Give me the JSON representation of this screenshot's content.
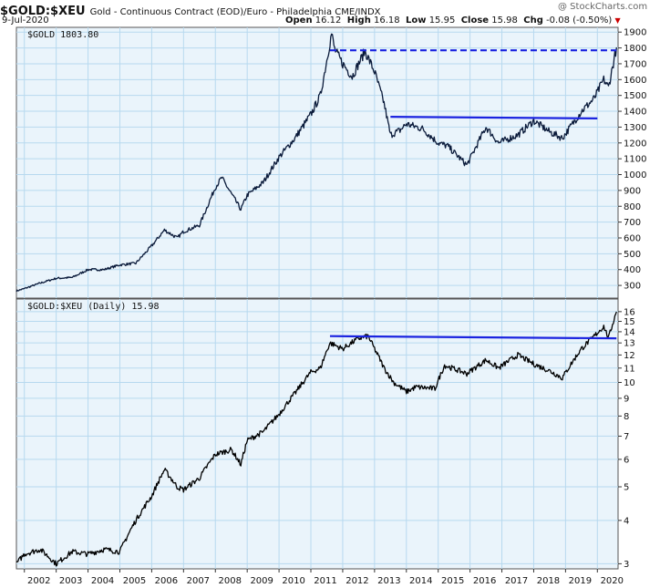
{
  "header": {
    "symbol": "$GOLD:$XEU",
    "description": "Gold - Continuous Contract (EOD)/Euro - Philadelphia CME/INDX",
    "date": "9-Jul-2020",
    "watermark": "@ StockCharts.com",
    "open_label": "Open",
    "open_value": "16.12",
    "high_label": "High",
    "high_value": "16.18",
    "low_label": "Low",
    "low_value": "15.95",
    "close_label": "Close",
    "close_value": "15.98",
    "chg_label": "Chg",
    "chg_value": "-0.08 (-0.50%)"
  },
  "colors": {
    "panel_bg": "#eaf4fb",
    "grid": "#b7d9ef",
    "line": "#0a1a3a",
    "lower_line": "#000000",
    "trendline": "#1a23e0",
    "down_arrow": "#cc0000"
  },
  "chart_data": [
    {
      "type": "line",
      "legend": "$GOLD 1803.80",
      "scale": "linear",
      "ylim": [
        220,
        1930
      ],
      "yticks": [
        300,
        400,
        500,
        600,
        700,
        800,
        900,
        1000,
        1100,
        1200,
        1300,
        1400,
        1500,
        1600,
        1700,
        1800,
        1900
      ],
      "x_ticks": [
        "2002",
        "2003",
        "2004",
        "2005",
        "2006",
        "2007",
        "2008",
        "2009",
        "2010",
        "2011",
        "2012",
        "2013",
        "2014",
        "2015",
        "2016",
        "2017",
        "2018",
        "2019",
        "2020"
      ],
      "series": [
        {
          "x": [
            2001.75,
            2002.0,
            2002.5,
            2003.0,
            2003.5,
            2004.0,
            2004.5,
            2005.0,
            2005.5,
            2006.0,
            2006.4,
            2006.8,
            2007.0,
            2007.5,
            2008.0,
            2008.2,
            2008.8,
            2009.0,
            2009.5,
            2010.0,
            2010.5,
            2011.0,
            2011.3,
            2011.65,
            2011.75,
            2012.0,
            2012.3,
            2012.7,
            2013.0,
            2013.3,
            2013.5,
            2013.8,
            2014.0,
            2014.5,
            2015.0,
            2015.3,
            2015.9,
            2016.5,
            2016.9,
            2017.5,
            2018.0,
            2018.5,
            2018.9,
            2019.5,
            2019.9,
            2020.2,
            2020.35,
            2020.6
          ],
          "y": [
            265,
            280,
            315,
            345,
            350,
            400,
            400,
            430,
            440,
            550,
            650,
            600,
            640,
            680,
            920,
            980,
            780,
            870,
            950,
            1110,
            1230,
            1380,
            1500,
            1890,
            1790,
            1700,
            1620,
            1780,
            1650,
            1450,
            1250,
            1280,
            1320,
            1290,
            1200,
            1180,
            1060,
            1300,
            1200,
            1250,
            1340,
            1270,
            1230,
            1400,
            1480,
            1600,
            1550,
            1804
          ]
        },
        {
          "name": "resistance",
          "style": "dashed",
          "x": [
            2011.6,
            2020.6
          ],
          "y": [
            1785,
            1785
          ]
        },
        {
          "name": "support",
          "style": "solid",
          "x": [
            2013.5,
            2020.0
          ],
          "y": [
            1365,
            1355
          ]
        }
      ]
    },
    {
      "type": "line",
      "legend": "$GOLD:$XEU (Daily) 15.98",
      "scale": "log",
      "ylim": [
        2.9,
        17.4
      ],
      "yticks": [
        3,
        4,
        5,
        6,
        7,
        8,
        9,
        10,
        11,
        12,
        13,
        14,
        15,
        16
      ],
      "x_ticks": [
        "2002",
        "2003",
        "2004",
        "2005",
        "2006",
        "2007",
        "2008",
        "2009",
        "2010",
        "2011",
        "2012",
        "2013",
        "2014",
        "2015",
        "2016",
        "2017",
        "2018",
        "2019",
        "2020"
      ],
      "series": [
        {
          "x": [
            2001.75,
            2002.0,
            2002.5,
            2003.0,
            2003.5,
            2004.0,
            2004.5,
            2005.0,
            2005.5,
            2006.0,
            2006.4,
            2006.8,
            2007.0,
            2007.5,
            2008.0,
            2008.5,
            2008.8,
            2009.0,
            2009.5,
            2010.0,
            2010.5,
            2011.0,
            2011.3,
            2011.6,
            2012.0,
            2012.5,
            2012.8,
            2013.0,
            2013.3,
            2013.6,
            2014.0,
            2014.3,
            2014.9,
            2015.2,
            2015.9,
            2016.5,
            2016.9,
            2017.5,
            2018.0,
            2018.5,
            2018.9,
            2019.5,
            2019.9,
            2020.2,
            2020.35,
            2020.6
          ],
          "y": [
            3.0,
            3.2,
            3.3,
            3.0,
            3.25,
            3.2,
            3.3,
            3.25,
            4.0,
            4.7,
            5.6,
            5.0,
            4.9,
            5.3,
            6.2,
            6.4,
            5.8,
            6.8,
            7.2,
            8.1,
            9.3,
            10.7,
            11.0,
            13.0,
            12.5,
            13.4,
            13.6,
            12.5,
            11.0,
            10.0,
            9.4,
            9.7,
            9.6,
            11.2,
            10.6,
            11.6,
            11.0,
            12.0,
            11.3,
            10.8,
            10.3,
            12.5,
            13.6,
            14.5,
            13.4,
            16.0
          ]
        },
        {
          "name": "breakout",
          "style": "solid",
          "x": [
            2011.6,
            2020.6
          ],
          "y": [
            13.6,
            13.4
          ]
        }
      ]
    }
  ]
}
